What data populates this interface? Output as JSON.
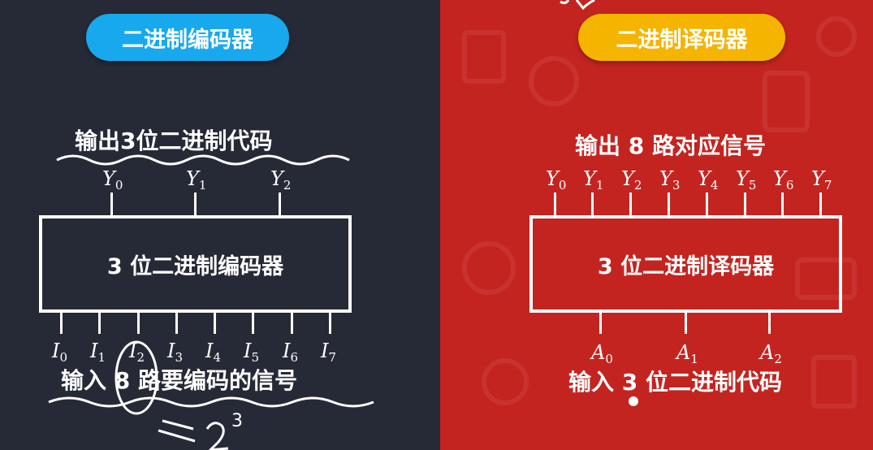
{
  "encoder": {
    "title": "二进制编码器",
    "output_caption": "输出3位二进制代码",
    "box_label": "3 位二进制编码器",
    "input_caption": "输入 8 路要编码的信号",
    "outputs": [
      {
        "base": "Y",
        "sub": "0"
      },
      {
        "base": "Y",
        "sub": "1"
      },
      {
        "base": "Y",
        "sub": "2"
      }
    ],
    "inputs": [
      {
        "base": "I",
        "sub": "0"
      },
      {
        "base": "I",
        "sub": "1"
      },
      {
        "base": "I",
        "sub": "2"
      },
      {
        "base": "I",
        "sub": "3"
      },
      {
        "base": "I",
        "sub": "4"
      },
      {
        "base": "I",
        "sub": "5"
      },
      {
        "base": "I",
        "sub": "6"
      },
      {
        "base": "I",
        "sub": "7"
      }
    ]
  },
  "decoder": {
    "title": "二进制译码器",
    "output_caption": "输出 8 路对应信号",
    "box_label": "3 位二进制译码器",
    "input_caption": "输入 3 位二进制代码",
    "outputs": [
      {
        "base": "Y",
        "sub": "0"
      },
      {
        "base": "Y",
        "sub": "1"
      },
      {
        "base": "Y",
        "sub": "2"
      },
      {
        "base": "Y",
        "sub": "3"
      },
      {
        "base": "Y",
        "sub": "4"
      },
      {
        "base": "Y",
        "sub": "5"
      },
      {
        "base": "Y",
        "sub": "6"
      },
      {
        "base": "Y",
        "sub": "7"
      }
    ],
    "inputs": [
      {
        "base": "A",
        "sub": "0"
      },
      {
        "base": "A",
        "sub": "1"
      },
      {
        "base": "A",
        "sub": "2"
      }
    ]
  },
  "handwriting": {
    "note": "= 2",
    "exponent": "3"
  },
  "colors": {
    "left_bg": "#262a36",
    "right_bg": "#c42420",
    "encoder_pill": "#18a8ee",
    "decoder_pill": "#f5b400",
    "ink": "#ffffff"
  }
}
